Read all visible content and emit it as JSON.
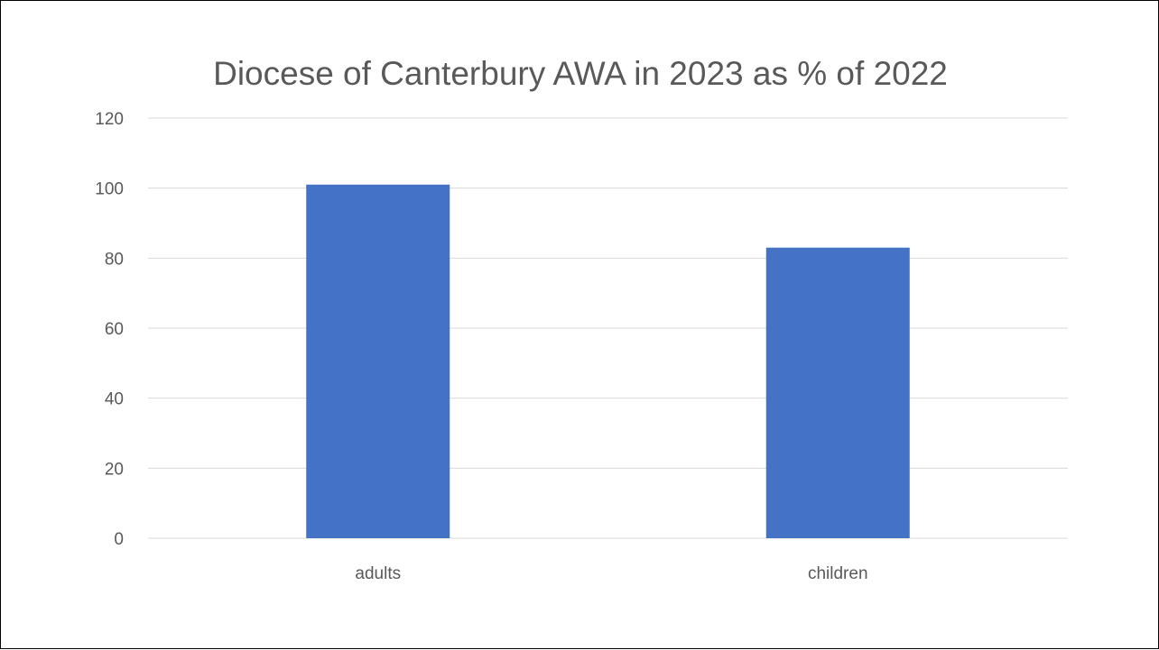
{
  "chart_data": {
    "type": "bar",
    "title": "Diocese of Canterbury AWA in 2023 as % of 2022",
    "xlabel": "",
    "ylabel": "",
    "categories": [
      "adults",
      "children"
    ],
    "values": [
      101,
      83
    ],
    "ylim": [
      0,
      120
    ],
    "yticks": [
      0,
      20,
      40,
      60,
      80,
      100,
      120
    ],
    "grid": true,
    "legend": "none",
    "bar_color": "#4472c4"
  }
}
